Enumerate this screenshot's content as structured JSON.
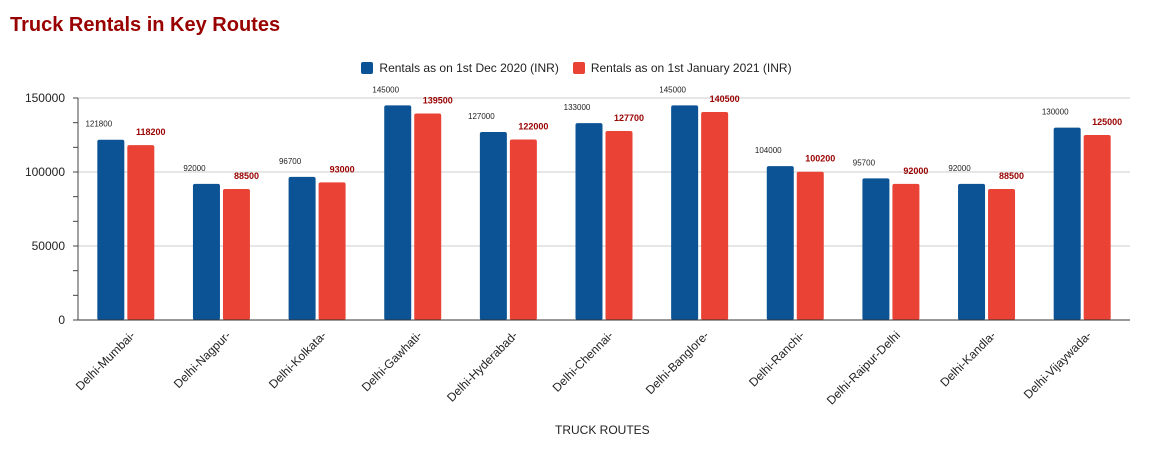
{
  "title": "Truck Rentals in Key Routes",
  "chart_data": {
    "type": "bar",
    "title": "Truck Rentals in Key Routes",
    "xlabel": "TRUCK ROUTES",
    "ylabel": "",
    "ylim": [
      0,
      150000
    ],
    "yticks": [
      0,
      50000,
      100000,
      150000
    ],
    "grid": true,
    "legend_position": "top",
    "categories": [
      "Delhi-Mumbai-",
      "Delhi-Nagpur-",
      "Delhi-Kolkata-",
      "Delhi-Gawhati-",
      "Delhi-Hyderabad-",
      "Delhi-Chennai-",
      "Delhi-Banglore-",
      "Delhi-Ranchi-",
      "Delhi-Raipur-Delhi",
      "Delhi-Kandla-",
      "Delhi-Vijaywada-"
    ],
    "series": [
      {
        "name": "Rentals as on 1st Dec 2020 (INR)",
        "color": "#0b5394",
        "values": [
          121800,
          92000,
          96700,
          145000,
          127000,
          133000,
          145000,
          104000,
          95700,
          92000,
          130000
        ]
      },
      {
        "name": "Rentals as on 1st January 2021 (INR)",
        "color": "#ea4335",
        "values": [
          118200,
          88500,
          93000,
          139500,
          122000,
          127700,
          140500,
          100200,
          92000,
          88500,
          125000
        ]
      }
    ]
  }
}
